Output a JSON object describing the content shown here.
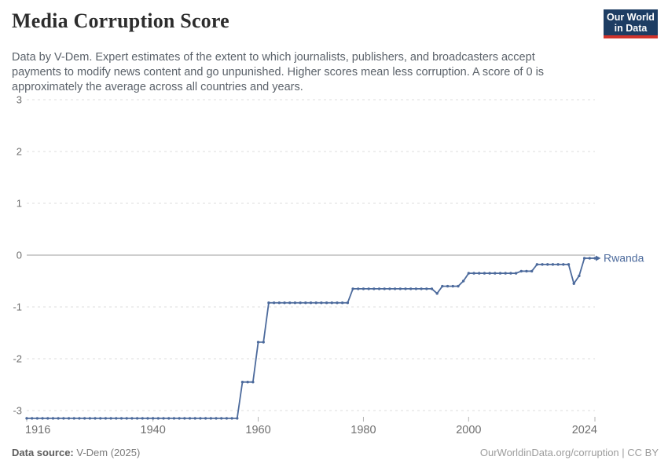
{
  "header": {
    "title": "Media Corruption Score",
    "subtitle": "Data by V-Dem. Expert estimates of the extent to which journalists, publishers, and broadcasters accept payments to modify news content and go unpunished. Higher scores mean less corruption. A score of 0 is approximately the average across all countries and years.",
    "logo": {
      "line1": "Our World",
      "line2": "in Data",
      "bg_color": "#1d3d63",
      "bar_color": "#d0342c"
    }
  },
  "chart_data": {
    "type": "line",
    "title": "Media Corruption Score",
    "end_label": "Rwanda",
    "line_color": "#4C6A9C",
    "grid": "horizontal dashed gridlines, solid zero line",
    "legend_position": "end-of-line label",
    "x_range": [
      1916,
      2024
    ],
    "x_ticks": [
      1916,
      1940,
      1960,
      1980,
      2000,
      2024
    ],
    "y_ticks": [
      3,
      2,
      1,
      0,
      -1,
      -2,
      -3
    ],
    "y_drawn_range": [
      -3.2,
      3
    ],
    "series": [
      {
        "name": "Rwanda",
        "year_start": 1916,
        "year_end": 2024,
        "values": [
          -3.15,
          -3.15,
          -3.15,
          -3.15,
          -3.15,
          -3.15,
          -3.15,
          -3.15,
          -3.15,
          -3.15,
          -3.15,
          -3.15,
          -3.15,
          -3.15,
          -3.15,
          -3.15,
          -3.15,
          -3.15,
          -3.15,
          -3.15,
          -3.15,
          -3.15,
          -3.15,
          -3.15,
          -3.15,
          -3.15,
          -3.15,
          -3.15,
          -3.15,
          -3.15,
          -3.15,
          -3.15,
          -3.15,
          -3.15,
          -3.15,
          -3.15,
          -3.15,
          -3.15,
          -3.15,
          -3.15,
          -3.15,
          -2.45,
          -2.45,
          -2.45,
          -1.68,
          -1.68,
          -0.92,
          -0.92,
          -0.92,
          -0.92,
          -0.92,
          -0.92,
          -0.92,
          -0.92,
          -0.92,
          -0.92,
          -0.92,
          -0.92,
          -0.92,
          -0.92,
          -0.92,
          -0.92,
          -0.65,
          -0.65,
          -0.65,
          -0.65,
          -0.65,
          -0.65,
          -0.65,
          -0.65,
          -0.65,
          -0.65,
          -0.65,
          -0.65,
          -0.65,
          -0.65,
          -0.65,
          -0.65,
          -0.74,
          -0.6,
          -0.6,
          -0.6,
          -0.6,
          -0.5,
          -0.35,
          -0.35,
          -0.35,
          -0.35,
          -0.35,
          -0.35,
          -0.35,
          -0.35,
          -0.35,
          -0.35,
          -0.31,
          -0.31,
          -0.31,
          -0.18,
          -0.18,
          -0.18,
          -0.18,
          -0.18,
          -0.18,
          -0.18,
          -0.55,
          -0.4,
          -0.06,
          -0.06,
          -0.06
        ]
      }
    ],
    "axis_colors": {
      "gridline": "#dedede",
      "zero_line": "#9e9e9e",
      "tick_label": "#6f6f6f"
    }
  },
  "footer": {
    "source_label": "Data source:",
    "source_value": "V-Dem (2025)",
    "attribution": "OurWorldinData.org/corruption | CC BY"
  }
}
